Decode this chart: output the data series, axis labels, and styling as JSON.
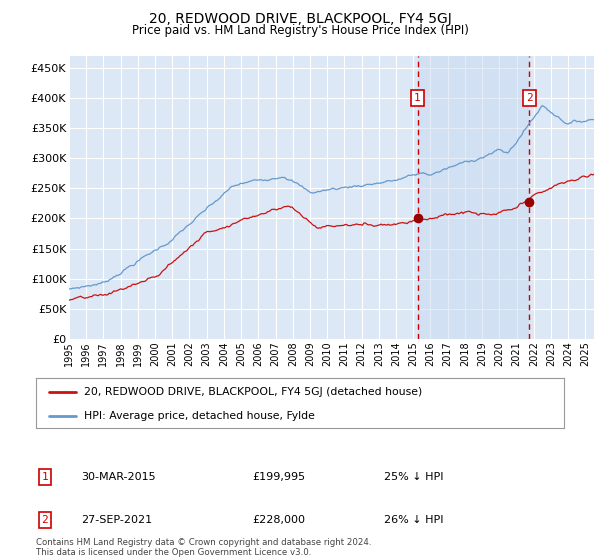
{
  "title": "20, REDWOOD DRIVE, BLACKPOOL, FY4 5GJ",
  "subtitle": "Price paid vs. HM Land Registry's House Price Index (HPI)",
  "footer": "Contains HM Land Registry data © Crown copyright and database right 2024.\nThis data is licensed under the Open Government Licence v3.0.",
  "legend_line1": "20, REDWOOD DRIVE, BLACKPOOL, FY4 5GJ (detached house)",
  "legend_line2": "HPI: Average price, detached house, Fylde",
  "annotation1_label": "1",
  "annotation1_date": "30-MAR-2015",
  "annotation1_price": "£199,995",
  "annotation1_hpi": "25% ↓ HPI",
  "annotation2_label": "2",
  "annotation2_date": "27-SEP-2021",
  "annotation2_price": "£228,000",
  "annotation2_hpi": "26% ↓ HPI",
  "ylim": [
    0,
    470000
  ],
  "yticks": [
    0,
    50000,
    100000,
    150000,
    200000,
    250000,
    300000,
    350000,
    400000,
    450000
  ],
  "ytick_labels": [
    "£0",
    "£50K",
    "£100K",
    "£150K",
    "£200K",
    "£250K",
    "£300K",
    "£350K",
    "£400K",
    "£450K"
  ],
  "background_color": "#ffffff",
  "plot_bg_color": "#dce8f5",
  "grid_color": "#ffffff",
  "hpi_line_color": "#6699cc",
  "price_line_color": "#cc1111",
  "annotation_line_color": "#cc0000",
  "annotation_box_color": "#cc0000",
  "shade_color": "#c8daf0",
  "marker1_x": 2015.25,
  "marker2_x": 2021.75,
  "marker1_y": 199995,
  "marker2_y": 228000,
  "xmin": 1995.0,
  "xmax": 2025.5
}
